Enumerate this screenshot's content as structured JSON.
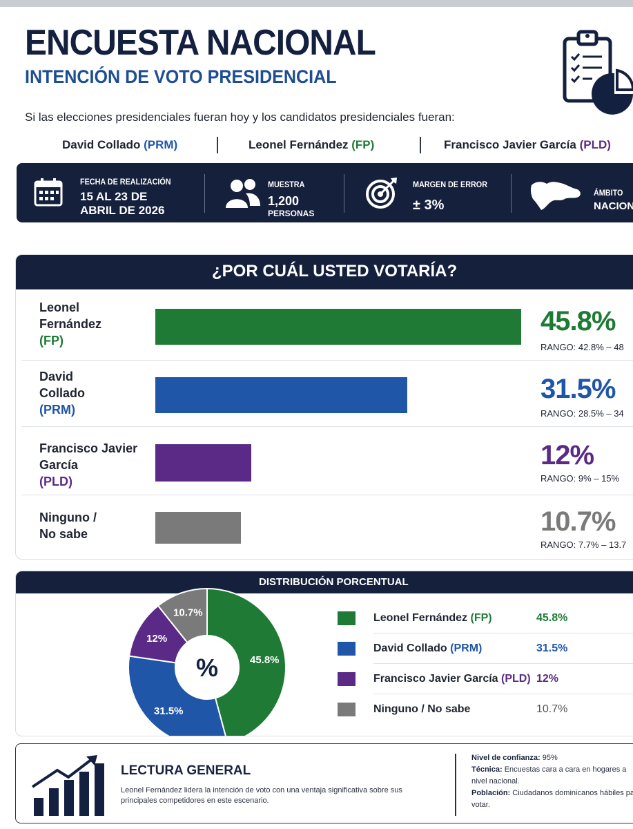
{
  "header": {
    "title": "ENCUESTA NACIONAL",
    "subtitle": "INTENCIÓN DE VOTO PRESIDENCIAL",
    "intro": "Si las elecciones presidenciales fueran hoy y los candidatos presidenciales fueran:",
    "icon": "clipboard-chart-icon"
  },
  "candidates": [
    {
      "name": "David Collado",
      "party": "(PRM)",
      "party_color": "#1f56a8"
    },
    {
      "name": "Leonel Fernández",
      "party": "(FP)",
      "party_color": "#1e7a34"
    },
    {
      "name": "Francisco Javier García",
      "party": "(PLD)",
      "party_color": "#5a2a86"
    }
  ],
  "info": {
    "fecha_label": "FECHA DE REALIZACIÓN",
    "fecha_line1": "15 AL 23 DE",
    "fecha_line2": "ABRIL DE 2026",
    "muestra_label": "MUESTRA",
    "muestra_value": "1,200",
    "muestra_unit": "PERSONAS",
    "margen_label": "MARGEN DE ERROR",
    "margen_value": "± 3%",
    "ambito_label": "ÁMBITO",
    "ambito_value": "NACION"
  },
  "vote": {
    "title": "¿POR CUÁL USTED VOTARÍA?",
    "rows": [
      {
        "name_lines": [
          "Leonel",
          "Fernández"
        ],
        "party": "(FP)",
        "value": 45.8,
        "pct_label": "45.8%",
        "rango": "RANGO: 42.8% – 48",
        "color": "#1e7a34"
      },
      {
        "name_lines": [
          "David",
          "Collado"
        ],
        "party": "(PRM)",
        "value": 31.5,
        "pct_label": "31.5%",
        "rango": "RANGO: 28.5% – 34",
        "color": "#1f56a8"
      },
      {
        "name_lines": [
          "Francisco Javier",
          "García"
        ],
        "party": "(PLD)",
        "value": 12,
        "pct_label": "12%",
        "rango": "RANGO: 9% – 15%",
        "color": "#5a2a86"
      },
      {
        "name_lines": [
          "Ninguno /",
          "No sabe"
        ],
        "party": "",
        "value": 10.7,
        "pct_label": "10.7%",
        "rango": "RANGO: 7.7% – 13.7",
        "color": "#7a7a7a"
      }
    ]
  },
  "chart_data": [
    {
      "type": "bar",
      "title": "¿POR CUÁL USTED VOTARÍA?",
      "categories": [
        "Leonel Fernández (FP)",
        "David Collado (PRM)",
        "Francisco Javier García (PLD)",
        "Ninguno / No sabe"
      ],
      "values": [
        45.8,
        31.5,
        12,
        10.7
      ],
      "orientation": "horizontal"
    },
    {
      "type": "pie",
      "title": "DISTRIBUCIÓN PORCENTUAL",
      "center_label": "%",
      "slices": [
        {
          "name": "Leonel Fernández",
          "party": "(FP)",
          "value": 45.8,
          "label": "45.8%",
          "color": "#1e7a34"
        },
        {
          "name": "David Collado",
          "party": "(PRM)",
          "value": 31.5,
          "label": "31.5%",
          "color": "#1f56a8"
        },
        {
          "name": "Francisco Javier García",
          "party": "(PLD)",
          "value": 12,
          "label": "12%",
          "color": "#5a2a86"
        },
        {
          "name": "Ninguno / No sabe",
          "party": "",
          "value": 10.7,
          "label": "10.7%",
          "color": "#7a7a7a"
        }
      ]
    }
  ],
  "lectura": {
    "title": "LECTURA GENERAL",
    "text": "Leonel Fernández lidera la intención de voto con una ventaja significativa sobre sus principales competidores en este escenario.",
    "meta": [
      {
        "label": "Nivel de confianza:",
        "value": "95%"
      },
      {
        "label": "Técnica:",
        "value": "Encuestas cara a cara en hogares a nivel nacional."
      },
      {
        "label": "Población:",
        "value": "Ciudadanos dominicanos hábiles para votar."
      }
    ]
  }
}
